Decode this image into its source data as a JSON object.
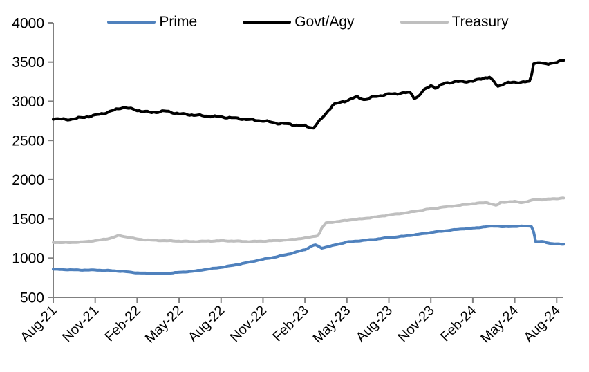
{
  "chart_data": {
    "type": "line",
    "title": "",
    "xlabel": "",
    "ylabel": "",
    "ylim": [
      500,
      4000
    ],
    "y_ticks": [
      500,
      1000,
      1500,
      2000,
      2500,
      3000,
      3500,
      4000
    ],
    "x_tick_labels": [
      "Aug-21",
      "Nov-21",
      "Feb-22",
      "May-22",
      "Aug-22",
      "Nov-22",
      "Feb-23",
      "May-23",
      "Aug-23",
      "Nov-23",
      "Feb-24",
      "May-24",
      "Aug-24"
    ],
    "x_tick_months": [
      0,
      3,
      6,
      9,
      12,
      15,
      18,
      21,
      24,
      27,
      30,
      33,
      36
    ],
    "x_range_months": [
      0,
      36.5
    ],
    "grid": false,
    "legend_position": "top-center",
    "axis_color": "#808080",
    "text_color": "#000000",
    "series": [
      {
        "name": "Prime",
        "color": "#4F81BD",
        "line_width": 4,
        "jitter": 4,
        "points": [
          [
            0,
            858
          ],
          [
            1,
            852
          ],
          [
            2,
            848
          ],
          [
            3,
            848
          ],
          [
            4,
            842
          ],
          [
            5,
            830
          ],
          [
            6,
            812
          ],
          [
            7,
            802
          ],
          [
            8,
            806
          ],
          [
            9,
            818
          ],
          [
            10,
            832
          ],
          [
            11,
            858
          ],
          [
            12,
            882
          ],
          [
            13,
            912
          ],
          [
            14,
            948
          ],
          [
            15,
            985
          ],
          [
            16,
            1018
          ],
          [
            17,
            1058
          ],
          [
            18,
            1108
          ],
          [
            18.7,
            1172
          ],
          [
            19.2,
            1128
          ],
          [
            20,
            1160
          ],
          [
            21,
            1205
          ],
          [
            22,
            1222
          ],
          [
            23,
            1240
          ],
          [
            24,
            1262
          ],
          [
            25,
            1278
          ],
          [
            26,
            1300
          ],
          [
            27,
            1326
          ],
          [
            28,
            1348
          ],
          [
            29,
            1368
          ],
          [
            30,
            1382
          ],
          [
            31,
            1400
          ],
          [
            31.6,
            1410
          ],
          [
            32.2,
            1398
          ],
          [
            33,
            1405
          ],
          [
            34,
            1408
          ],
          [
            34.3,
            1402
          ],
          [
            34.45,
            1208
          ],
          [
            35,
            1212
          ],
          [
            35.6,
            1185
          ],
          [
            36,
            1180
          ],
          [
            36.5,
            1176
          ]
        ]
      },
      {
        "name": "Govt/Agy",
        "color": "#000000",
        "line_width": 4,
        "jitter": 13,
        "points": [
          [
            0,
            2780
          ],
          [
            1,
            2765
          ],
          [
            2,
            2790
          ],
          [
            3,
            2820
          ],
          [
            4,
            2865
          ],
          [
            5,
            2925
          ],
          [
            6,
            2885
          ],
          [
            7,
            2855
          ],
          [
            8,
            2875
          ],
          [
            9,
            2840
          ],
          [
            10,
            2825
          ],
          [
            11,
            2810
          ],
          [
            12,
            2800
          ],
          [
            13,
            2785
          ],
          [
            14,
            2765
          ],
          [
            15,
            2750
          ],
          [
            16,
            2720
          ],
          [
            17,
            2705
          ],
          [
            18,
            2685
          ],
          [
            18.6,
            2660
          ],
          [
            19.3,
            2800
          ],
          [
            20,
            2955
          ],
          [
            21,
            3010
          ],
          [
            21.7,
            3055
          ],
          [
            22.3,
            3020
          ],
          [
            23,
            3060
          ],
          [
            24,
            3090
          ],
          [
            25,
            3105
          ],
          [
            25.6,
            3110
          ],
          [
            25.8,
            3040
          ],
          [
            26.1,
            3060
          ],
          [
            26.5,
            3140
          ],
          [
            27,
            3205
          ],
          [
            27.4,
            3165
          ],
          [
            28,
            3235
          ],
          [
            29,
            3250
          ],
          [
            30,
            3255
          ],
          [
            30.8,
            3300
          ],
          [
            31.2,
            3305
          ],
          [
            31.8,
            3192
          ],
          [
            32.3,
            3230
          ],
          [
            33,
            3242
          ],
          [
            34,
            3248
          ],
          [
            34.15,
            3252
          ],
          [
            34.3,
            3488
          ],
          [
            34.8,
            3495
          ],
          [
            35.2,
            3468
          ],
          [
            35.8,
            3495
          ],
          [
            36.2,
            3505
          ],
          [
            36.5,
            3522
          ]
        ]
      },
      {
        "name": "Treasury",
        "color": "#BFBFBF",
        "line_width": 4,
        "jitter": 5,
        "points": [
          [
            0,
            1200
          ],
          [
            1,
            1196
          ],
          [
            2,
            1204
          ],
          [
            3,
            1222
          ],
          [
            4,
            1250
          ],
          [
            4.7,
            1288
          ],
          [
            5.3,
            1268
          ],
          [
            6,
            1243
          ],
          [
            7,
            1228
          ],
          [
            8,
            1222
          ],
          [
            9,
            1216
          ],
          [
            10,
            1211
          ],
          [
            11,
            1216
          ],
          [
            12,
            1222
          ],
          [
            13,
            1217
          ],
          [
            14,
            1211
          ],
          [
            15,
            1216
          ],
          [
            16,
            1223
          ],
          [
            17,
            1236
          ],
          [
            18,
            1256
          ],
          [
            18.8,
            1282
          ],
          [
            19.0,
            1295
          ],
          [
            19.15,
            1370
          ],
          [
            19.5,
            1448
          ],
          [
            20,
            1458
          ],
          [
            21,
            1482
          ],
          [
            22,
            1500
          ],
          [
            23,
            1522
          ],
          [
            24,
            1550
          ],
          [
            25,
            1572
          ],
          [
            26,
            1600
          ],
          [
            27,
            1630
          ],
          [
            28,
            1652
          ],
          [
            29,
            1672
          ],
          [
            30,
            1695
          ],
          [
            31,
            1710
          ],
          [
            31.7,
            1668
          ],
          [
            32,
            1712
          ],
          [
            33,
            1722
          ],
          [
            33.5,
            1708
          ],
          [
            34,
            1726
          ],
          [
            34.5,
            1750
          ],
          [
            35,
            1744
          ],
          [
            35.5,
            1754
          ],
          [
            36,
            1760
          ],
          [
            36.5,
            1766
          ]
        ]
      }
    ]
  }
}
